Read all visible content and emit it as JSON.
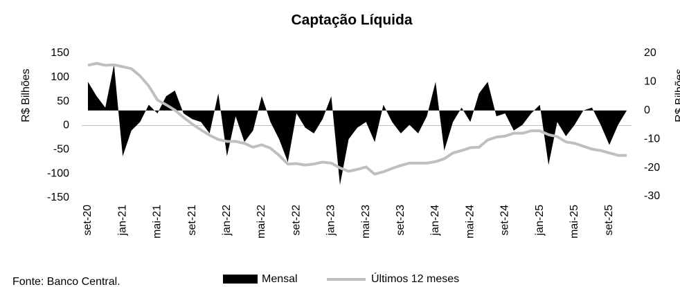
{
  "chart_data": {
    "type": "area-line",
    "title": "Captação Líquida",
    "source": "Fonte: Banco Central.",
    "ylabel": "R$ Bilhões",
    "y2label": "R$ Bilhões",
    "categories": [
      "set-20",
      null,
      null,
      null,
      "jan-21",
      null,
      null,
      null,
      "mai-21",
      null,
      null,
      null,
      "set-21",
      null,
      null,
      null,
      "jan-22",
      null,
      null,
      null,
      "mai-22",
      null,
      null,
      null,
      "set-22",
      null,
      null,
      null,
      "jan-23",
      null,
      null,
      null,
      "mai-23",
      null,
      null,
      null,
      "set-23",
      null,
      null,
      null,
      "jan-24",
      null,
      null,
      null,
      "mai-24",
      null,
      null,
      null,
      "set-24",
      null,
      null,
      null,
      "jan-25",
      null,
      null,
      null,
      "mai-25",
      null,
      null,
      null,
      "set-25",
      null,
      null
    ],
    "series": [
      {
        "name": "Mensal",
        "color": "#000000",
        "axis": "y2",
        "values": [
          10,
          5,
          1,
          16,
          -16,
          -7,
          -4,
          2,
          -1,
          5,
          7,
          -1,
          -3,
          -4,
          -8,
          6,
          -16,
          -2,
          -11,
          -7,
          5,
          -4,
          -10,
          -18,
          -1,
          -6,
          -8,
          -3,
          5,
          -26,
          -10,
          -6,
          -4,
          -11,
          2,
          -4,
          -8,
          -5,
          -8,
          -2,
          10,
          -14,
          -4,
          1,
          -4,
          6,
          10,
          -2,
          -1,
          -7,
          -5,
          -1,
          2,
          -19,
          -4,
          -9,
          -5,
          0,
          1,
          -5,
          -12,
          -5,
          0
        ]
      },
      {
        "name": "Últimos 12 meses",
        "color": "#bfbfbf",
        "values": [
          125,
          129,
          125,
          126,
          122,
          118,
          103,
          82,
          53,
          43,
          32,
          17,
          3,
          -9,
          -20,
          -29,
          -33,
          -33,
          -37,
          -45,
          -40,
          -47,
          -62,
          -80,
          -79,
          -82,
          -80,
          -76,
          -78,
          -88,
          -95,
          -91,
          -86,
          -101,
          -96,
          -89,
          -83,
          -78,
          -78,
          -78,
          -75,
          -69,
          -57,
          -52,
          -46,
          -45,
          -30,
          -24,
          -22,
          -16,
          -16,
          -11,
          -11,
          -19,
          -23,
          -34,
          -37,
          -43,
          -49,
          -52,
          -57,
          -62,
          -62
        ]
      }
    ],
    "ylim": [
      -150,
      150
    ],
    "yticks": [
      -150,
      -100,
      -50,
      0,
      50,
      100,
      150
    ],
    "y2lim": [
      -30,
      20
    ],
    "y2ticks": [
      -30,
      -20,
      -10,
      0,
      10,
      20
    ]
  }
}
